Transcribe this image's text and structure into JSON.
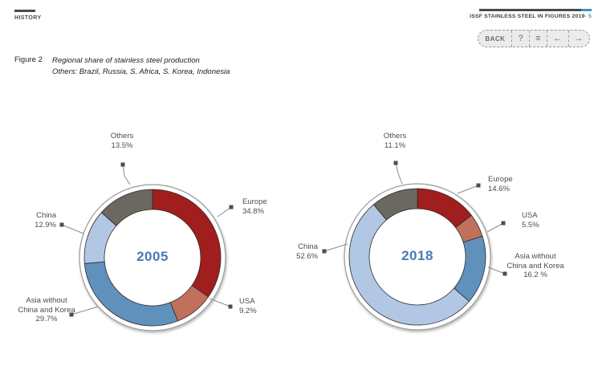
{
  "header": {
    "section_label": "HISTORY",
    "book_title": "ISSF STAINLESS STEEL IN FIGURES 2019",
    "separator": "·",
    "page_number": "5",
    "nav": [
      {
        "id": "back",
        "label": "BACK"
      },
      {
        "id": "help",
        "label": "?"
      },
      {
        "id": "menu",
        "label": "≡"
      },
      {
        "id": "prev",
        "label": "←"
      },
      {
        "id": "next",
        "label": "→"
      }
    ]
  },
  "caption": {
    "figure_label": "Figure 2",
    "title": "Regional share of stainless steel production",
    "subtitle": "Others: Brazil, Russia, S. Africa, S. Korea, Indonesia"
  },
  "colors": {
    "europe": "#a01e1e",
    "usa": "#c1705c",
    "asia": "#6090bc",
    "china": "#b1c7e4",
    "others": "#6b6761",
    "year_blue": "#4879bb",
    "accent_blue": "#3e8fc9",
    "leader_line": "#8c8c8c",
    "marker": "#4d4d4d",
    "ring": "#9c9c9c"
  },
  "chart_data": [
    {
      "type": "pie",
      "style": "donut",
      "center_label": "2005",
      "start_angle_deg": 0,
      "direction": "clockwise",
      "slices": [
        {
          "name": "Europe",
          "value": 34.8,
          "display": "34.8%",
          "color": "#a01e1e",
          "label_lines": [
            "Europe"
          ]
        },
        {
          "name": "USA",
          "value": 9.2,
          "display": "9.2%",
          "color": "#c1705c",
          "label_lines": [
            "USA"
          ]
        },
        {
          "name": "Asia without China and Korea",
          "value": 29.7,
          "display": "29.7%",
          "color": "#6090bc",
          "label_lines": [
            "Asia without",
            "China and Korea"
          ]
        },
        {
          "name": "China",
          "value": 12.9,
          "display": "12.9%",
          "color": "#b1c7e4",
          "label_lines": [
            "China"
          ]
        },
        {
          "name": "Others",
          "value": 13.5,
          "display": "13.5%",
          "color": "#6b6761",
          "label_lines": [
            "Others"
          ]
        }
      ]
    },
    {
      "type": "pie",
      "style": "donut",
      "center_label": "2018",
      "start_angle_deg": 0,
      "direction": "clockwise",
      "slices": [
        {
          "name": "Europe",
          "value": 14.6,
          "display": "14.6%",
          "color": "#a01e1e",
          "label_lines": [
            "Europe"
          ]
        },
        {
          "name": "USA",
          "value": 5.5,
          "display": "5.5%",
          "color": "#c1705c",
          "label_lines": [
            "USA"
          ]
        },
        {
          "name": "Asia without China and Korea",
          "value": 16.2,
          "display": "16.2 %",
          "color": "#6090bc",
          "label_lines": [
            "Asia without",
            "China and Korea"
          ]
        },
        {
          "name": "China",
          "value": 52.6,
          "display": "52.6%",
          "color": "#b1c7e4",
          "label_lines": [
            "China"
          ]
        },
        {
          "name": "Others",
          "value": 11.1,
          "display": "11.1%",
          "color": "#6b6761",
          "label_lines": [
            "Others"
          ]
        }
      ]
    }
  ]
}
